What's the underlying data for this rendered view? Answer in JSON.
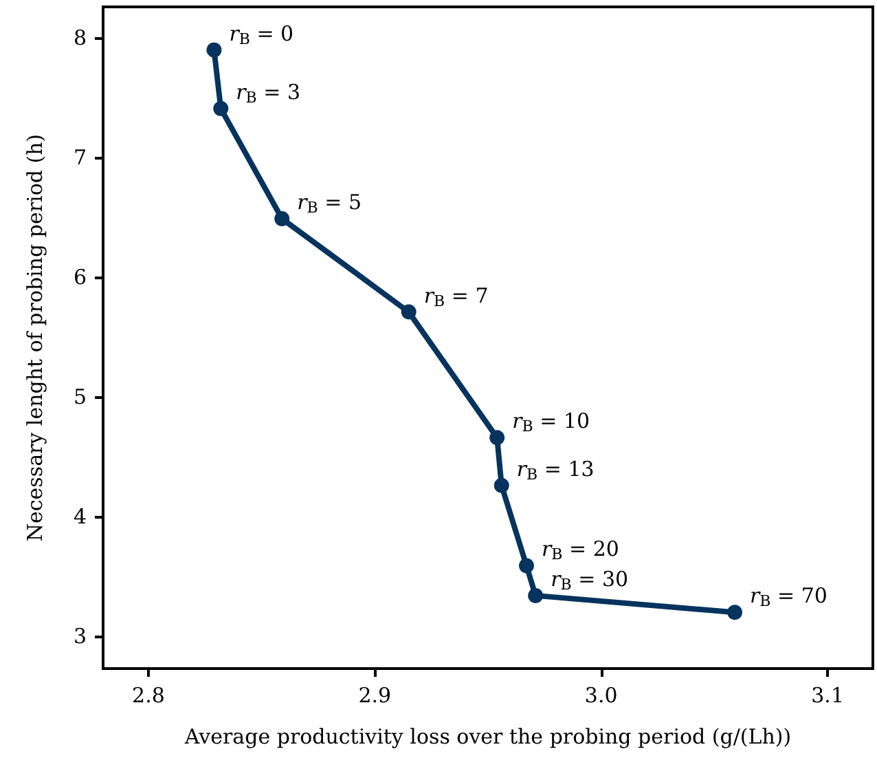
{
  "chart_data": {
    "type": "line",
    "xlabel": "Average productivity loss over the probing period (g/(Lh))",
    "ylabel": "Necessary lenght of probing period (h)",
    "x": [
      2.829,
      2.832,
      2.859,
      2.915,
      2.954,
      2.956,
      2.967,
      2.971,
      3.059
    ],
    "series": [
      {
        "color": "#07335f",
        "values": [
          7.9,
          7.41,
          6.49,
          5.71,
          4.66,
          4.26,
          3.59,
          3.34,
          3.2
        ]
      }
    ],
    "xlim": [
      2.78,
      3.12
    ],
    "xticks": [
      {
        "value": 2.8,
        "label": "2.8"
      },
      {
        "value": 2.9,
        "label": "2.9"
      },
      {
        "value": 3.0,
        "label": "3.0"
      },
      {
        "value": 3.1,
        "label": "3.1"
      }
    ],
    "ylim": [
      2.73,
      8.26
    ],
    "yticks": [
      3,
      4,
      5,
      6,
      7,
      8
    ],
    "marker": "circle",
    "line_style": "solid",
    "grid": false,
    "annotations": [
      {
        "text": "r$_{B}$ = 0",
        "x": 2.829,
        "y": 7.9
      },
      {
        "text": "r$_{B}$ = 3",
        "x": 2.832,
        "y": 7.41
      },
      {
        "text": "r$_{B}$ = 5",
        "x": 2.859,
        "y": 6.49
      },
      {
        "text": "r$_{B}$ = 7",
        "x": 2.915,
        "y": 5.71
      },
      {
        "text": "r$_{B}$ = 10",
        "x": 2.954,
        "y": 4.66
      },
      {
        "text": "r$_{B}$ = 13",
        "x": 2.956,
        "y": 4.26
      },
      {
        "text": "r$_{B}$ = 20",
        "x": 2.967,
        "y": 3.59
      },
      {
        "text": "r$_{B}$ = 30",
        "x": 2.971,
        "y": 3.34
      },
      {
        "text": "r$_{B}$ = 70",
        "x": 3.059,
        "y": 3.2
      }
    ]
  }
}
